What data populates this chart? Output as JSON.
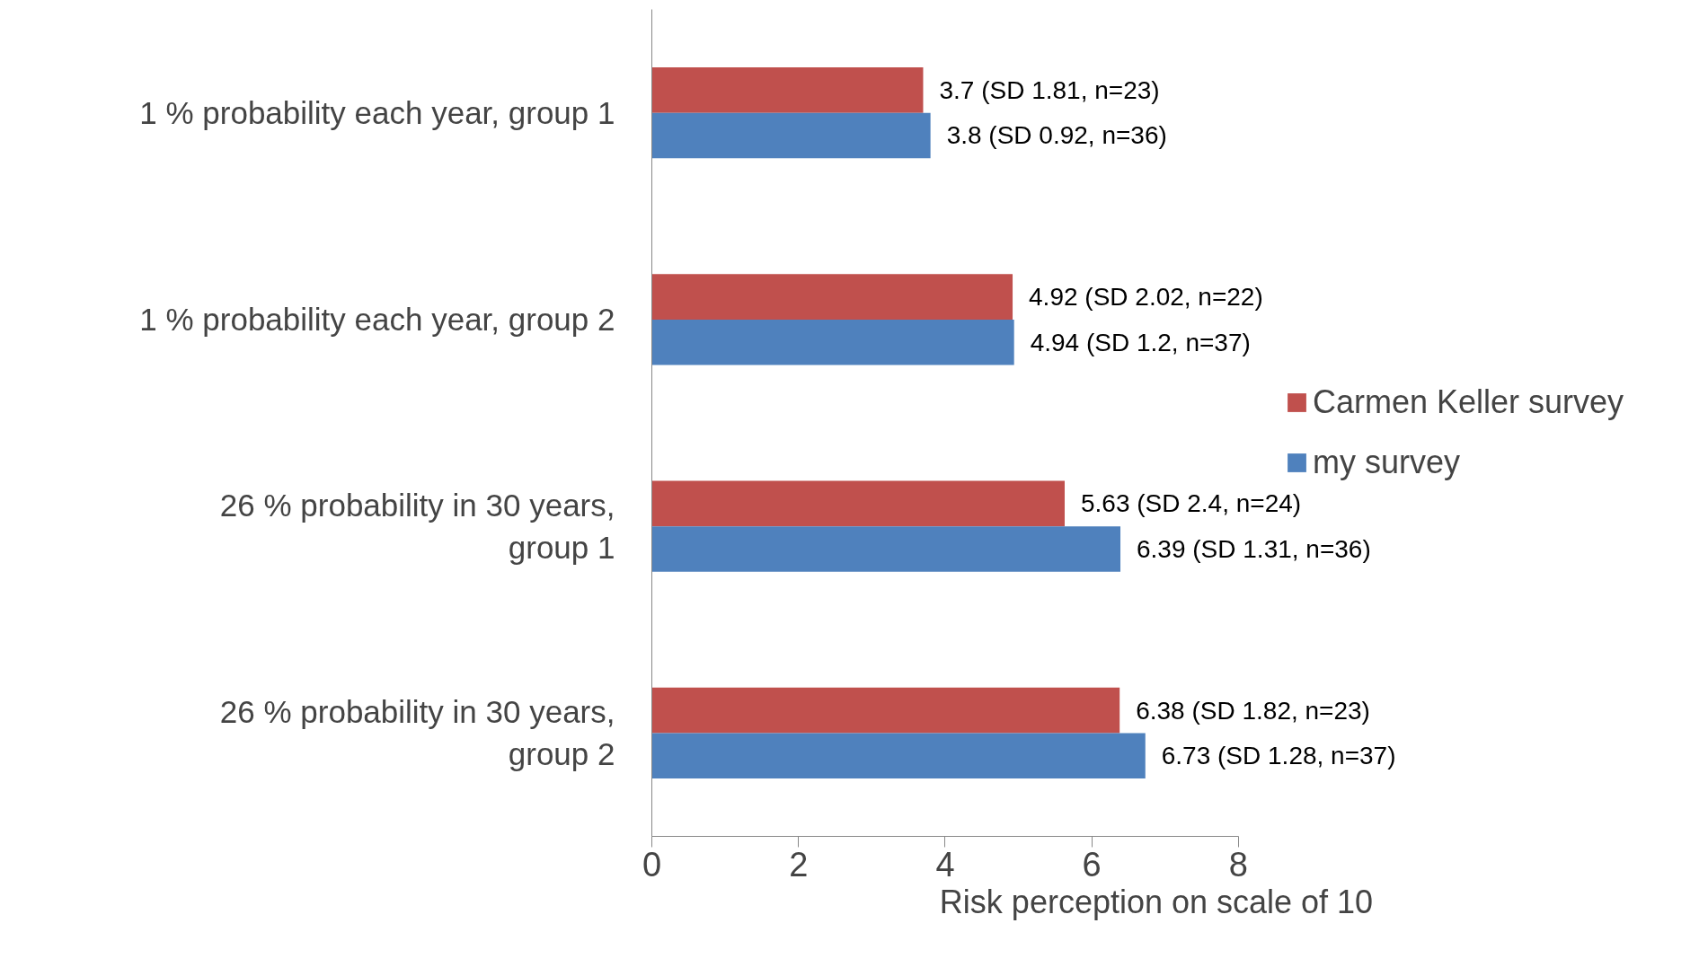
{
  "chart_data": {
    "type": "bar",
    "orientation": "horizontal",
    "xlabel": "Risk perception on scale of 10",
    "categories": [
      "1 % probability each year, group 1",
      "1 % probability each year, group 2",
      "26 % probability in 30 years,\ngroup 1",
      "26 % probability in 30 years,\ngroup 2"
    ],
    "series": [
      {
        "name": "Carmen Keller survey",
        "color": "#c0504d",
        "values": [
          3.7,
          4.92,
          5.63,
          6.38
        ],
        "value_labels": [
          "3.7 (SD  1.81,  n=23)",
          "4.92 (SD  2.02,  n=22)",
          "5.63 (SD  2.4,  n=24)",
          "6.38 (SD  1.82,  n=23)"
        ]
      },
      {
        "name": "my survey",
        "color": "#4f81bd",
        "values": [
          3.8,
          4.94,
          6.39,
          6.73
        ],
        "value_labels": [
          "3.8 (SD  0.92,  n=36)",
          "4.94 (SD  1.2,  n=37)",
          "6.39 (SD  1.31,  n=36)",
          "6.73 (SD  1.28,  n=37)"
        ]
      }
    ],
    "xlim": [
      0,
      8
    ],
    "xticks": [
      0,
      2,
      4,
      6,
      8
    ],
    "grid": false,
    "legend": "right"
  }
}
